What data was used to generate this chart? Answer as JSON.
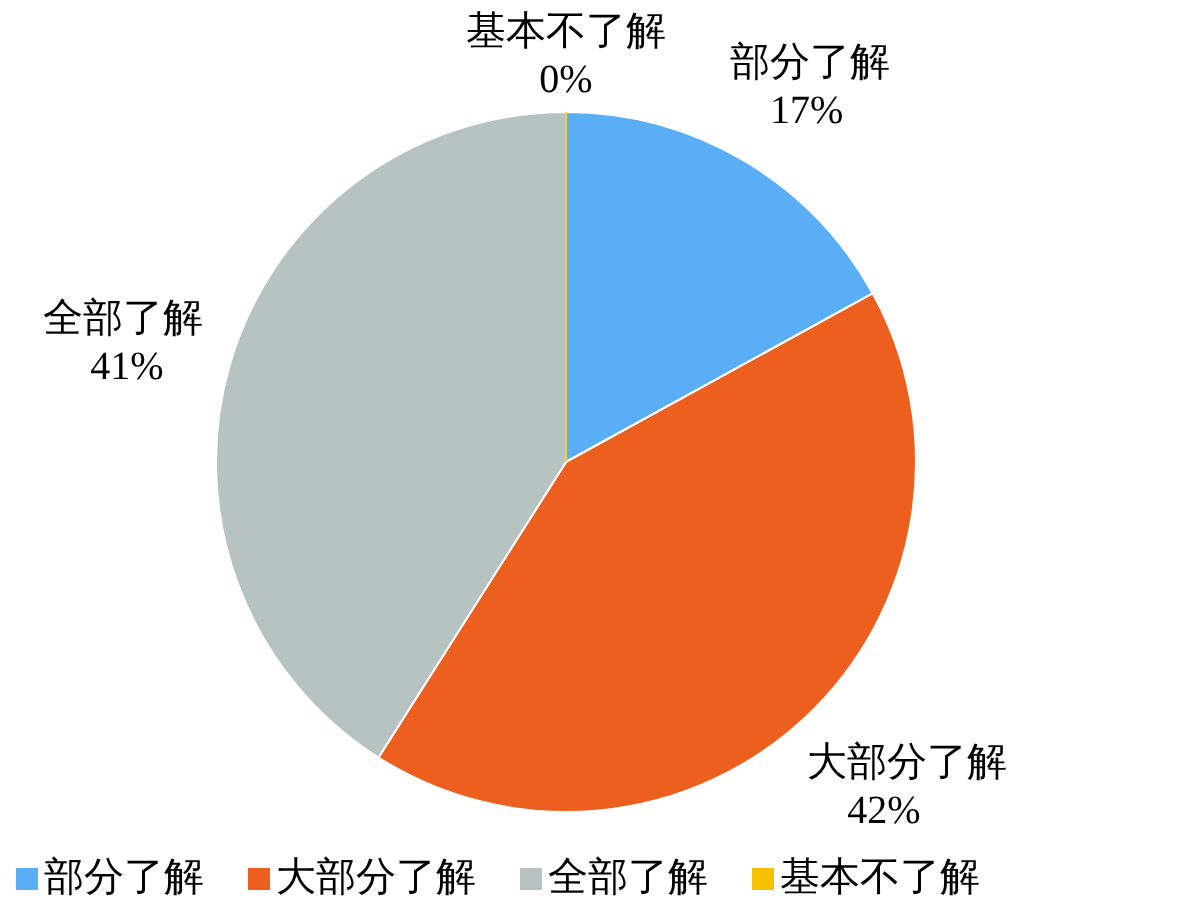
{
  "chart_data": {
    "type": "pie",
    "categories": [
      "部分了解",
      "大部分了解",
      "全部了解",
      "基本不了解"
    ],
    "values": [
      17,
      42,
      41,
      0
    ],
    "colors": [
      "#5aaef5",
      "#ec5f1f",
      "#b7c3c0",
      "#f5c000"
    ],
    "value_labels": [
      "17%",
      "42%",
      "41%",
      "0%"
    ],
    "legend": "bottom"
  }
}
